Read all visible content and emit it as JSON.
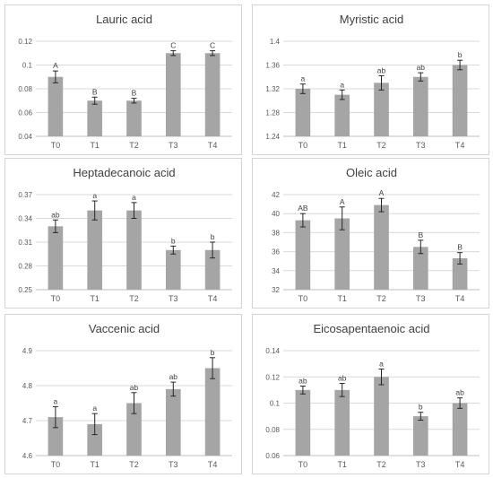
{
  "chart_data": [
    {
      "type": "bar",
      "title": "Lauric acid",
      "categories": [
        "T0",
        "T1",
        "T2",
        "T3",
        "T4"
      ],
      "values": [
        0.09,
        0.07,
        0.07,
        0.11,
        0.11
      ],
      "errors": [
        0.005,
        0.003,
        0.002,
        0.002,
        0.002
      ],
      "labels": [
        "A",
        "B",
        "B",
        "C",
        "C"
      ],
      "ylim": [
        0.04,
        0.12
      ],
      "yticks": [
        0.04,
        0.06,
        0.08,
        0.1,
        0.12
      ],
      "ytick_labels": [
        "0.04",
        "0.06",
        "0.08",
        "0.1",
        "0.12"
      ],
      "grid": true
    },
    {
      "type": "bar",
      "title": "Myristic acid",
      "categories": [
        "T0",
        "T1",
        "T2",
        "T3",
        "T4"
      ],
      "values": [
        1.32,
        1.31,
        1.33,
        1.34,
        1.36
      ],
      "errors": [
        0.008,
        0.008,
        0.012,
        0.007,
        0.008
      ],
      "labels": [
        "a",
        "a",
        "ab",
        "ab",
        "b"
      ],
      "ylim": [
        1.24,
        1.4
      ],
      "yticks": [
        1.24,
        1.28,
        1.32,
        1.36,
        1.4
      ],
      "ytick_labels": [
        "1.24",
        "1.28",
        "1.32",
        "1.36",
        "1.4"
      ],
      "grid": true
    },
    {
      "type": "bar",
      "title": "Heptadecanoic acid",
      "categories": [
        "T0",
        "T1",
        "T2",
        "T3",
        "T4"
      ],
      "values": [
        0.33,
        0.35,
        0.35,
        0.3,
        0.3
      ],
      "errors": [
        0.008,
        0.012,
        0.01,
        0.005,
        0.01
      ],
      "labels": [
        "ab",
        "a",
        "a",
        "b",
        "b"
      ],
      "ylim": [
        0.25,
        0.37
      ],
      "yticks": [
        0.25,
        0.28,
        0.31,
        0.34,
        0.37
      ],
      "ytick_labels": [
        "0.25",
        "0.28",
        "0.31",
        "0.34",
        "0.37"
      ],
      "grid": true
    },
    {
      "type": "bar",
      "title": "Oleic acid",
      "categories": [
        "T0",
        "T1",
        "T2",
        "T3",
        "T4"
      ],
      "values": [
        39.3,
        39.5,
        40.9,
        36.5,
        35.3
      ],
      "errors": [
        0.7,
        1.2,
        0.7,
        0.7,
        0.6
      ],
      "labels": [
        "AB",
        "A",
        "A",
        "B",
        "B"
      ],
      "ylim": [
        32,
        42
      ],
      "yticks": [
        32,
        34,
        36,
        38,
        40,
        42
      ],
      "ytick_labels": [
        "32",
        "34",
        "36",
        "38",
        "40",
        "42"
      ],
      "grid": true
    },
    {
      "type": "bar",
      "title": "Vaccenic acid",
      "categories": [
        "T0",
        "T1",
        "T2",
        "T3",
        "T4"
      ],
      "values": [
        4.71,
        4.69,
        4.75,
        4.79,
        4.85
      ],
      "errors": [
        0.03,
        0.03,
        0.03,
        0.02,
        0.03
      ],
      "labels": [
        "a",
        "a",
        "ab",
        "ab",
        "b"
      ],
      "ylim": [
        4.6,
        4.9
      ],
      "yticks": [
        4.6,
        4.7,
        4.8,
        4.9
      ],
      "ytick_labels": [
        "4.6",
        "4.7",
        "4.8",
        "4.9"
      ],
      "grid": true
    },
    {
      "type": "bar",
      "title": "Eicosapentaenoic acid",
      "categories": [
        "T0",
        "T1",
        "T2",
        "T3",
        "T4"
      ],
      "values": [
        0.11,
        0.11,
        0.12,
        0.09,
        0.1
      ],
      "errors": [
        0.003,
        0.005,
        0.006,
        0.003,
        0.004
      ],
      "labels": [
        "ab",
        "ab",
        "a",
        "b",
        "ab"
      ],
      "ylim": [
        0.06,
        0.14
      ],
      "yticks": [
        0.06,
        0.08,
        0.1,
        0.12,
        0.14
      ],
      "ytick_labels": [
        "0.06",
        "0.08",
        "0.1",
        "0.12",
        "0.14"
      ],
      "grid": true
    }
  ]
}
